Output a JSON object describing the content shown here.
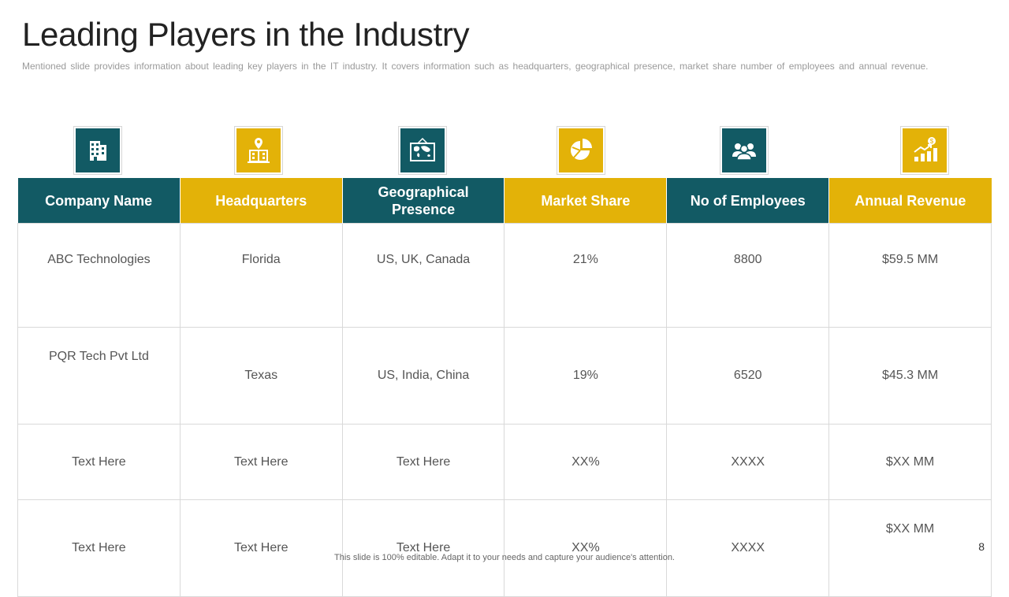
{
  "title": "Leading Players in the Industry",
  "subtitle": "Mentioned slide provides  information  about leading  key players in the IT  industry.  It covers  information  such as headquarters,  geographical  presence,  market share number  of employees and annual  revenue.",
  "colors": {
    "teal": "#125a64",
    "gold": "#e3b208"
  },
  "icons": [
    {
      "name": "office-building-icon",
      "color": "teal"
    },
    {
      "name": "headquarters-location-icon",
      "color": "gold"
    },
    {
      "name": "world-map-board-icon",
      "color": "teal"
    },
    {
      "name": "market-share-pie-icon",
      "color": "gold"
    },
    {
      "name": "employees-group-icon",
      "color": "teal"
    },
    {
      "name": "revenue-growth-icon",
      "color": "gold"
    }
  ],
  "table": {
    "headers": [
      "Company Name",
      "Headquarters",
      "Geographical Presence",
      "Market Share",
      "No of Employees",
      "Annual Revenue"
    ],
    "rows": [
      [
        "ABC Technologies",
        "Florida",
        "US, UK, Canada",
        "21%",
        "8800",
        "$59.5 MM"
      ],
      [
        "PQR Tech Pvt Ltd",
        "Texas",
        "US, India,  China",
        "19%",
        "6520",
        "$45.3 MM"
      ],
      [
        "Text  Here",
        "Text  Here",
        "Text  Here",
        "XX%",
        "XXXX",
        "$XX MM"
      ],
      [
        "Text  Here",
        "Text  Here",
        "Text  Here",
        "XX%",
        "XXXX",
        "$XX MM"
      ]
    ]
  },
  "page_number": "8",
  "footer": "This slide is 100% editable. Adapt it to your needs and capture your audience's attention."
}
